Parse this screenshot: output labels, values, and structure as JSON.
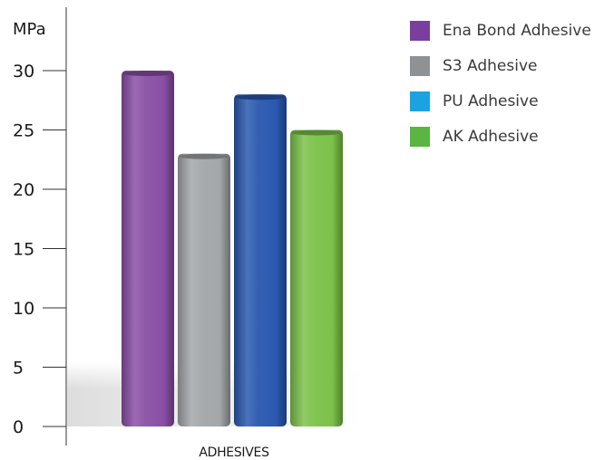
{
  "chart_data": {
    "type": "bar",
    "title": "",
    "ylabel": "MPa",
    "xlabel": "ADHESIVES",
    "ylim": [
      0,
      30
    ],
    "yticks": [
      0,
      5,
      10,
      15,
      20,
      25,
      30
    ],
    "grid": false,
    "legend_position": "top-right",
    "series": [
      {
        "name": "Ena Bond Adhesive",
        "value": 30,
        "color": "#8a4fa6"
      },
      {
        "name": "S3 Adhesive",
        "value": 23,
        "color": "#a3a7aa"
      },
      {
        "name": "PU Adhesive",
        "value": 28,
        "color": "#2a59b0"
      },
      {
        "name": "AK Adhesive",
        "value": 25,
        "color": "#7cc24a"
      }
    ],
    "legend_colors": [
      "#7a3f9e",
      "#8f9294",
      "#1aa3e0",
      "#5ab543"
    ]
  }
}
